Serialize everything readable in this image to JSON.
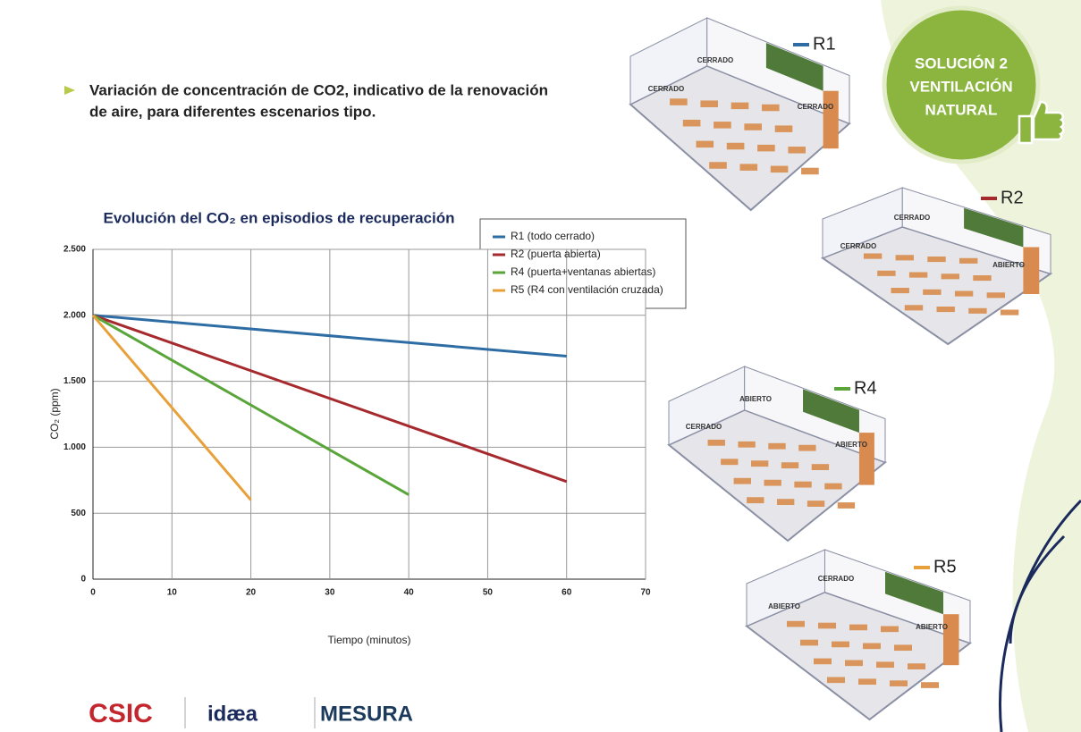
{
  "header": {
    "lines": [
      "Variación de concentración de CO2, indicativo de la renovación",
      "de aire, para diferentes escenarios tipo."
    ]
  },
  "badge": {
    "lines": [
      "SOLUCIÓN 2",
      "VENTILACIÓN",
      "NATURAL"
    ]
  },
  "scenarios": [
    {
      "label": "R1",
      "color": "#2e6da4",
      "notes": [
        "CERRADO",
        "CERRADO",
        "CERRADO"
      ]
    },
    {
      "label": "R2",
      "color": "#a6292e",
      "notes": [
        "CERRADO",
        "CERRADO",
        "ABIERTO"
      ]
    },
    {
      "label": "R4",
      "color": "#5aa53a",
      "notes": [
        "ABIERTO",
        "CERRADO",
        "ABIERTO"
      ]
    },
    {
      "label": "R5",
      "color": "#e8a13a",
      "notes": [
        "CERRADO",
        "ABIERTO",
        "ABIERTO"
      ]
    }
  ],
  "logos": [
    "CSIC",
    "idæa",
    "MESURA"
  ],
  "chart_data": {
    "type": "line",
    "title": "Evolución del CO₂ en episodios de recuperación",
    "x_label": "Tiempo (minutos)",
    "y_label": "CO₂ (ppm)",
    "xlim": [
      0,
      70
    ],
    "xticks": [
      0,
      10,
      20,
      30,
      40,
      50,
      60,
      70
    ],
    "ylim": [
      0,
      2500
    ],
    "yticks": [
      0,
      500,
      {
        "value": 1000,
        "label": "1.000"
      },
      {
        "value": 1500,
        "label": "1.500"
      },
      {
        "value": 2000,
        "label": "2.000"
      },
      {
        "value": 2500,
        "label": "2.500"
      }
    ],
    "grid": true,
    "legend": "upper right",
    "series": [
      {
        "name": "R1 (todo cerrado)",
        "color": "#2e6da4",
        "x": [
          0,
          60
        ],
        "values": [
          2000,
          1690
        ]
      },
      {
        "name": "R2 (puerta abierta)",
        "color": "#a6292e",
        "x": [
          0,
          60
        ],
        "values": [
          2000,
          740
        ]
      },
      {
        "name": "R4 (puerta+ventanas abiertas)",
        "color": "#5aa53a",
        "x": [
          0,
          40
        ],
        "values": [
          2000,
          640
        ]
      },
      {
        "name": "R5 (R4 con ventilación cruzada)",
        "color": "#e8a13a",
        "x": [
          0,
          20
        ],
        "values": [
          2000,
          600
        ]
      }
    ]
  }
}
